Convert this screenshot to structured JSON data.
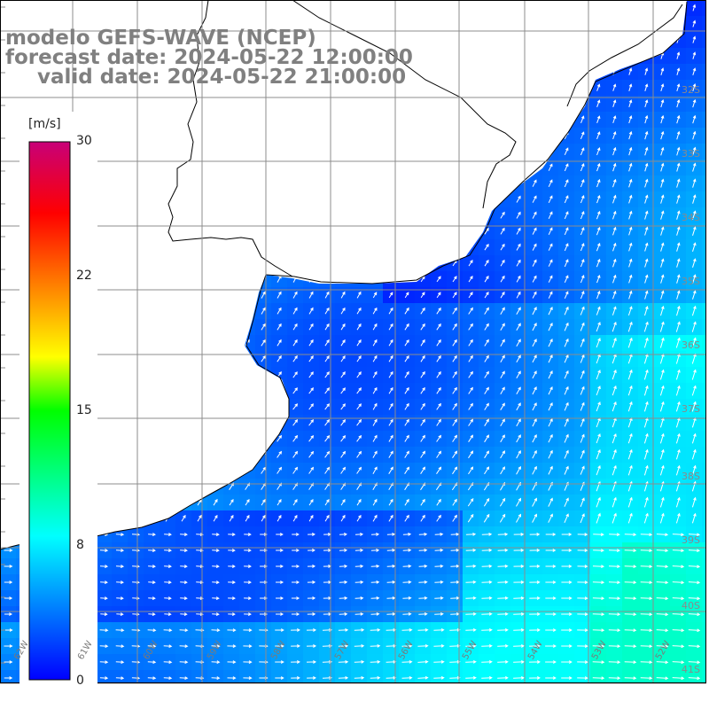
{
  "map": {
    "title_model": "modelo GEFS-WAVE (NCEP)",
    "title_forecast": "forecast date: 2024-05-22 12:00:00",
    "title_valid": "valid date: 2024-05-22 21:00:00",
    "land_color": "#ffffff",
    "coast_color": "#000000",
    "grid_color": "#8c8c8c",
    "arrow_color": "#ffffff",
    "lat_labels": [
      "32S",
      "33S",
      "34S",
      "35S",
      "36S",
      "37S",
      "38S",
      "39S",
      "40S",
      "41S"
    ],
    "lon_labels": [
      "62W",
      "61W",
      "60W",
      "59W",
      "58W",
      "57W",
      "56W",
      "55W",
      "54W",
      "53W",
      "52W"
    ]
  },
  "colorbar": {
    "unit": "[m/s]",
    "ticks": [
      "30",
      "22",
      "15",
      "8",
      "0"
    ],
    "tick_values": [
      30,
      22,
      15,
      8,
      0
    ],
    "min": 0,
    "max": 30,
    "stops": [
      {
        "value": 0,
        "color": "#0000ff"
      },
      {
        "value": 8,
        "color": "#00ffff"
      },
      {
        "value": 15,
        "color": "#00ff00"
      },
      {
        "value": 18,
        "color": "#ffff00"
      },
      {
        "value": 22,
        "color": "#ff8000"
      },
      {
        "value": 26,
        "color": "#ff0000"
      },
      {
        "value": 30,
        "color": "#c80078"
      }
    ]
  }
}
